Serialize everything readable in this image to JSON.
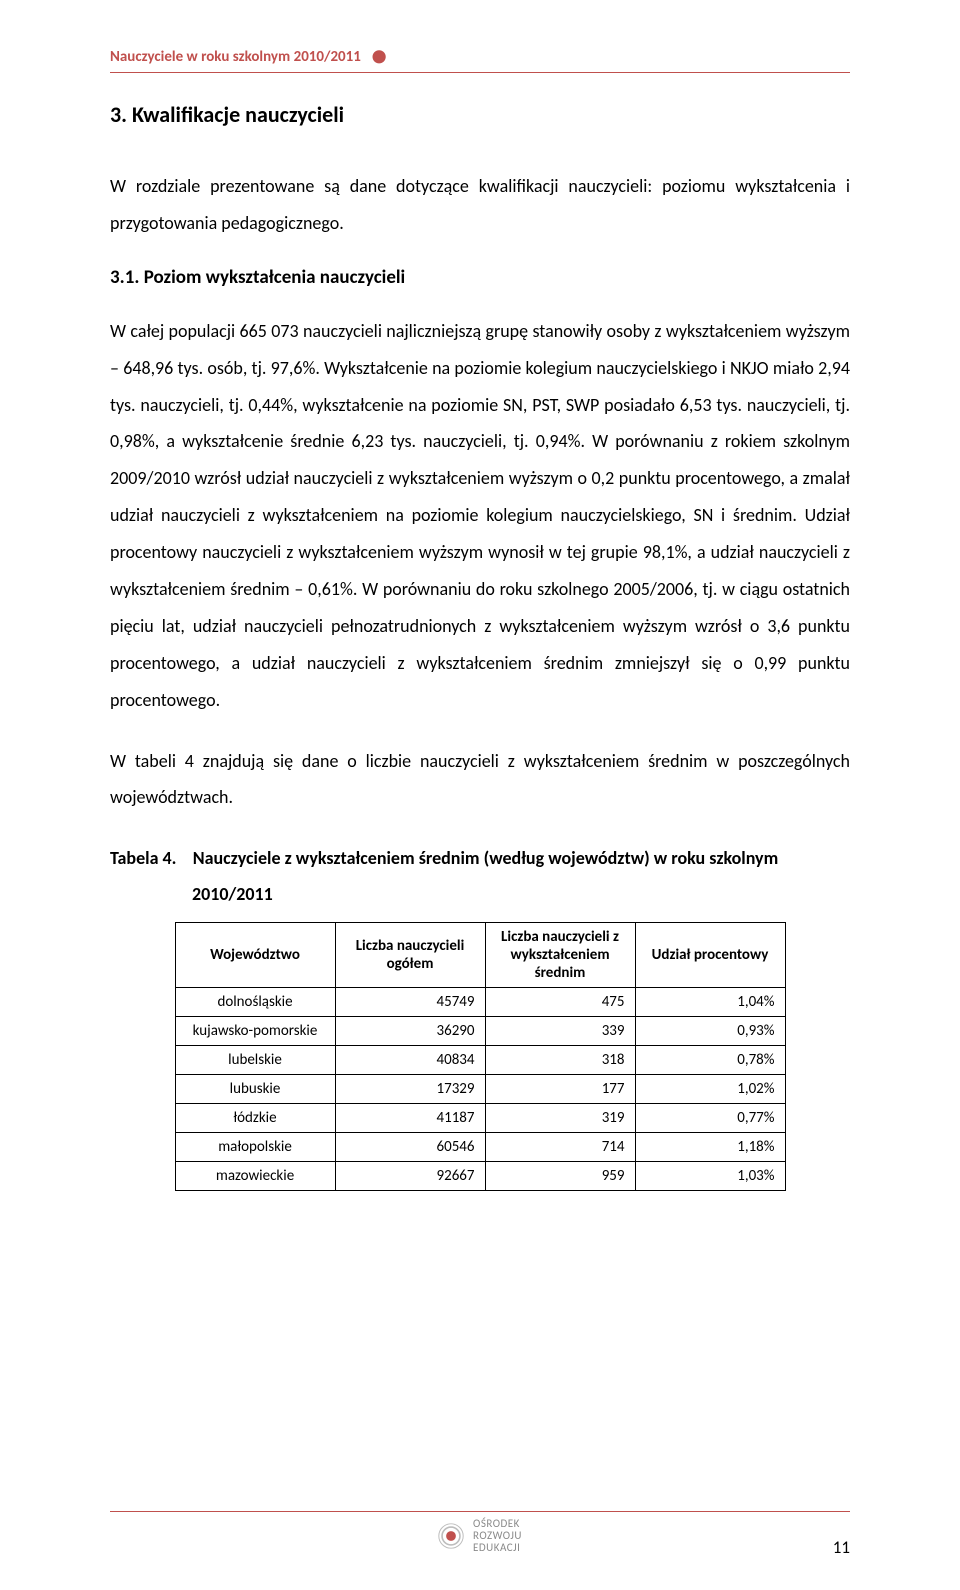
{
  "header": {
    "running_title": "Nauczyciele w roku szkolnym 2010/2011"
  },
  "section": {
    "number_title": "3. Kwalifikacje nauczycieli",
    "intro": "W rozdziale prezentowane są dane dotyczące kwalifikacji nauczycieli: poziomu wykształcenia i przygotowania pedagogicznego.",
    "sub_title": "3.1. Poziom wykształcenia nauczycieli",
    "para1": "W całej populacji 665 073 nauczycieli najliczniejszą grupę stanowiły osoby z wykształceniem wyższym – 648,96 tys. osób, tj. 97,6%. Wykształcenie na poziomie kolegium nauczycielskiego i NKJO miało 2,94 tys. nauczycieli, tj. 0,44%, wykształcenie na poziomie SN, PST, SWP posiadało 6,53 tys. nauczycieli, tj. 0,98%, a wykształcenie średnie 6,23 tys. nauczycieli, tj. 0,94%. W porównaniu z rokiem szkolnym 2009/2010 wzrósł udział nauczycieli z wykształceniem wyższym o 0,2 punktu procentowego, a zmalał udział nauczycieli z wykształceniem na poziomie kolegium nauczycielskiego, SN i średnim. Udział procentowy nauczycieli z wykształceniem wyższym wynosił w tej grupie 98,1%, a udział nauczycieli z wykształceniem średnim – 0,61%. W porównaniu do roku szkolnego 2005/2006, tj. w ciągu ostatnich pięciu lat, udział nauczycieli pełnozatrudnionych z wykształceniem wyższym wzrósł o 3,6 punktu procentowego, a udział nauczycieli z wykształceniem średnim zmniejszył się o 0,99 punktu procentowego.",
    "para2": "W tabeli 4 znajdują się dane o liczbie nauczycieli z wykształceniem średnim w poszczególnych województwach."
  },
  "table4": {
    "caption_label": "Tabela 4.",
    "caption_text_line1": "Nauczyciele z wykształceniem średnim (według województw) w roku szkolnym",
    "caption_text_line2": "2010/2011",
    "columns": [
      "Województwo",
      "Liczba nauczycieli ogółem",
      "Liczba nauczycieli z wykształceniem średnim",
      "Udział procentowy"
    ],
    "rows": [
      [
        "dolnośląskie",
        "45749",
        "475",
        "1,04%"
      ],
      [
        "kujawsko-pomorskie",
        "36290",
        "339",
        "0,93%"
      ],
      [
        "lubelskie",
        "40834",
        "318",
        "0,78%"
      ],
      [
        "lubuskie",
        "17329",
        "177",
        "1,02%"
      ],
      [
        "łódzkie",
        "41187",
        "319",
        "0,77%"
      ],
      [
        "małopolskie",
        "60546",
        "714",
        "1,18%"
      ],
      [
        "mazowieckie",
        "92667",
        "959",
        "1,03%"
      ]
    ]
  },
  "footer": {
    "logo_top": "OŚRODEK",
    "logo_mid": "ROZWOJU",
    "logo_bot": "EDUKACJI",
    "page_number": "11"
  },
  "colors": {
    "accent": "#c0504d",
    "text": "#000000",
    "grey": "#8a8a8a"
  }
}
